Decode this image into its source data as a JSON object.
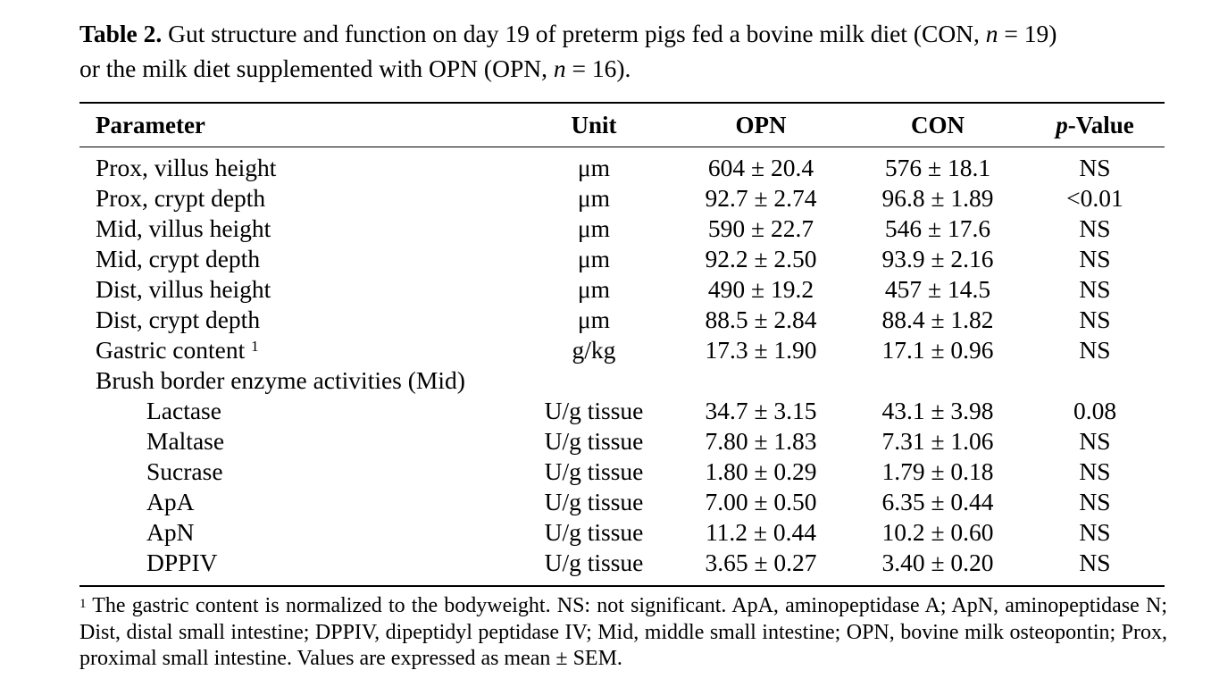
{
  "caption": {
    "label": "Table 2.",
    "text_1": " Gut structure and function on day 19 of preterm pigs fed a bovine milk diet (CON, ",
    "n1_var": "n",
    "n1_rest": " = 19)",
    "text_2": "or the milk diet supplemented with OPN (OPN, ",
    "n2_var": "n",
    "n2_rest": " = 16)."
  },
  "headers": {
    "parameter": "Parameter",
    "unit": "Unit",
    "opn": "OPN",
    "con": "CON",
    "p_italic": "p",
    "p_rest": "-Value"
  },
  "rows": [
    {
      "parameter": "Prox, villus height",
      "unit": "μm",
      "opn": "604 ± 20.4",
      "con": "576 ± 18.1",
      "p": "NS"
    },
    {
      "parameter": "Prox, crypt depth",
      "unit": "μm",
      "opn": "92.7 ± 2.74",
      "con": "96.8 ± 1.89",
      "p": "<0.01"
    },
    {
      "parameter": "Mid, villus height",
      "unit": "μm",
      "opn": "590 ± 22.7",
      "con": "546 ± 17.6",
      "p": "NS"
    },
    {
      "parameter": "Mid, crypt depth",
      "unit": "μm",
      "opn": "92.2 ± 2.50",
      "con": "93.9 ± 2.16",
      "p": "NS"
    },
    {
      "parameter": "Dist, villus height",
      "unit": "μm",
      "opn": "490 ± 19.2",
      "con": "457 ± 14.5",
      "p": "NS"
    },
    {
      "parameter": "Dist, crypt depth",
      "unit": "μm",
      "opn": "88.5 ± 2.84",
      "con": "88.4 ± 1.82",
      "p": "NS"
    },
    {
      "parameter": "Gastric content",
      "sup": "1",
      "unit": "g/kg",
      "opn": "17.3 ± 1.90",
      "con": "17.1 ± 0.96",
      "p": "NS"
    },
    {
      "parameter": "Brush border enzyme activities (Mid)",
      "unit": "",
      "opn": "",
      "con": "",
      "p": ""
    },
    {
      "parameter": "Lactase",
      "unit": "U/g tissue",
      "opn": "34.7 ± 3.15",
      "con": "43.1 ± 3.98",
      "p": "0.08"
    },
    {
      "parameter": "Maltase",
      "unit": "U/g tissue",
      "opn": "7.80 ± 1.83",
      "con": "7.31 ± 1.06",
      "p": "NS"
    },
    {
      "parameter": "Sucrase",
      "unit": "U/g tissue",
      "opn": "1.80 ± 0.29",
      "con": "1.79 ± 0.18",
      "p": "NS"
    },
    {
      "parameter": "ApA",
      "unit": "U/g tissue",
      "opn": "7.00 ± 0.50",
      "con": "6.35 ± 0.44",
      "p": "NS"
    },
    {
      "parameter": "ApN",
      "unit": "U/g tissue",
      "opn": "11.2 ± 0.44",
      "con": "10.2 ± 0.60",
      "p": "NS"
    },
    {
      "parameter": "DPPIV",
      "unit": "U/g tissue",
      "opn": "3.65 ± 0.27",
      "con": "3.40 ± 0.20",
      "p": "NS"
    }
  ],
  "footnote": {
    "marker": "1",
    "text": " The gastric content is normalized to the bodyweight. NS: not significant. ApA, aminopeptidase A; ApN, aminopeptidase N; Dist, distal small intestine; DPPIV, dipeptidyl peptidase IV; Mid, middle small intestine; OPN, bovine milk osteopontin; Prox, proximal small intestine. Values are expressed as mean ± SEM."
  }
}
